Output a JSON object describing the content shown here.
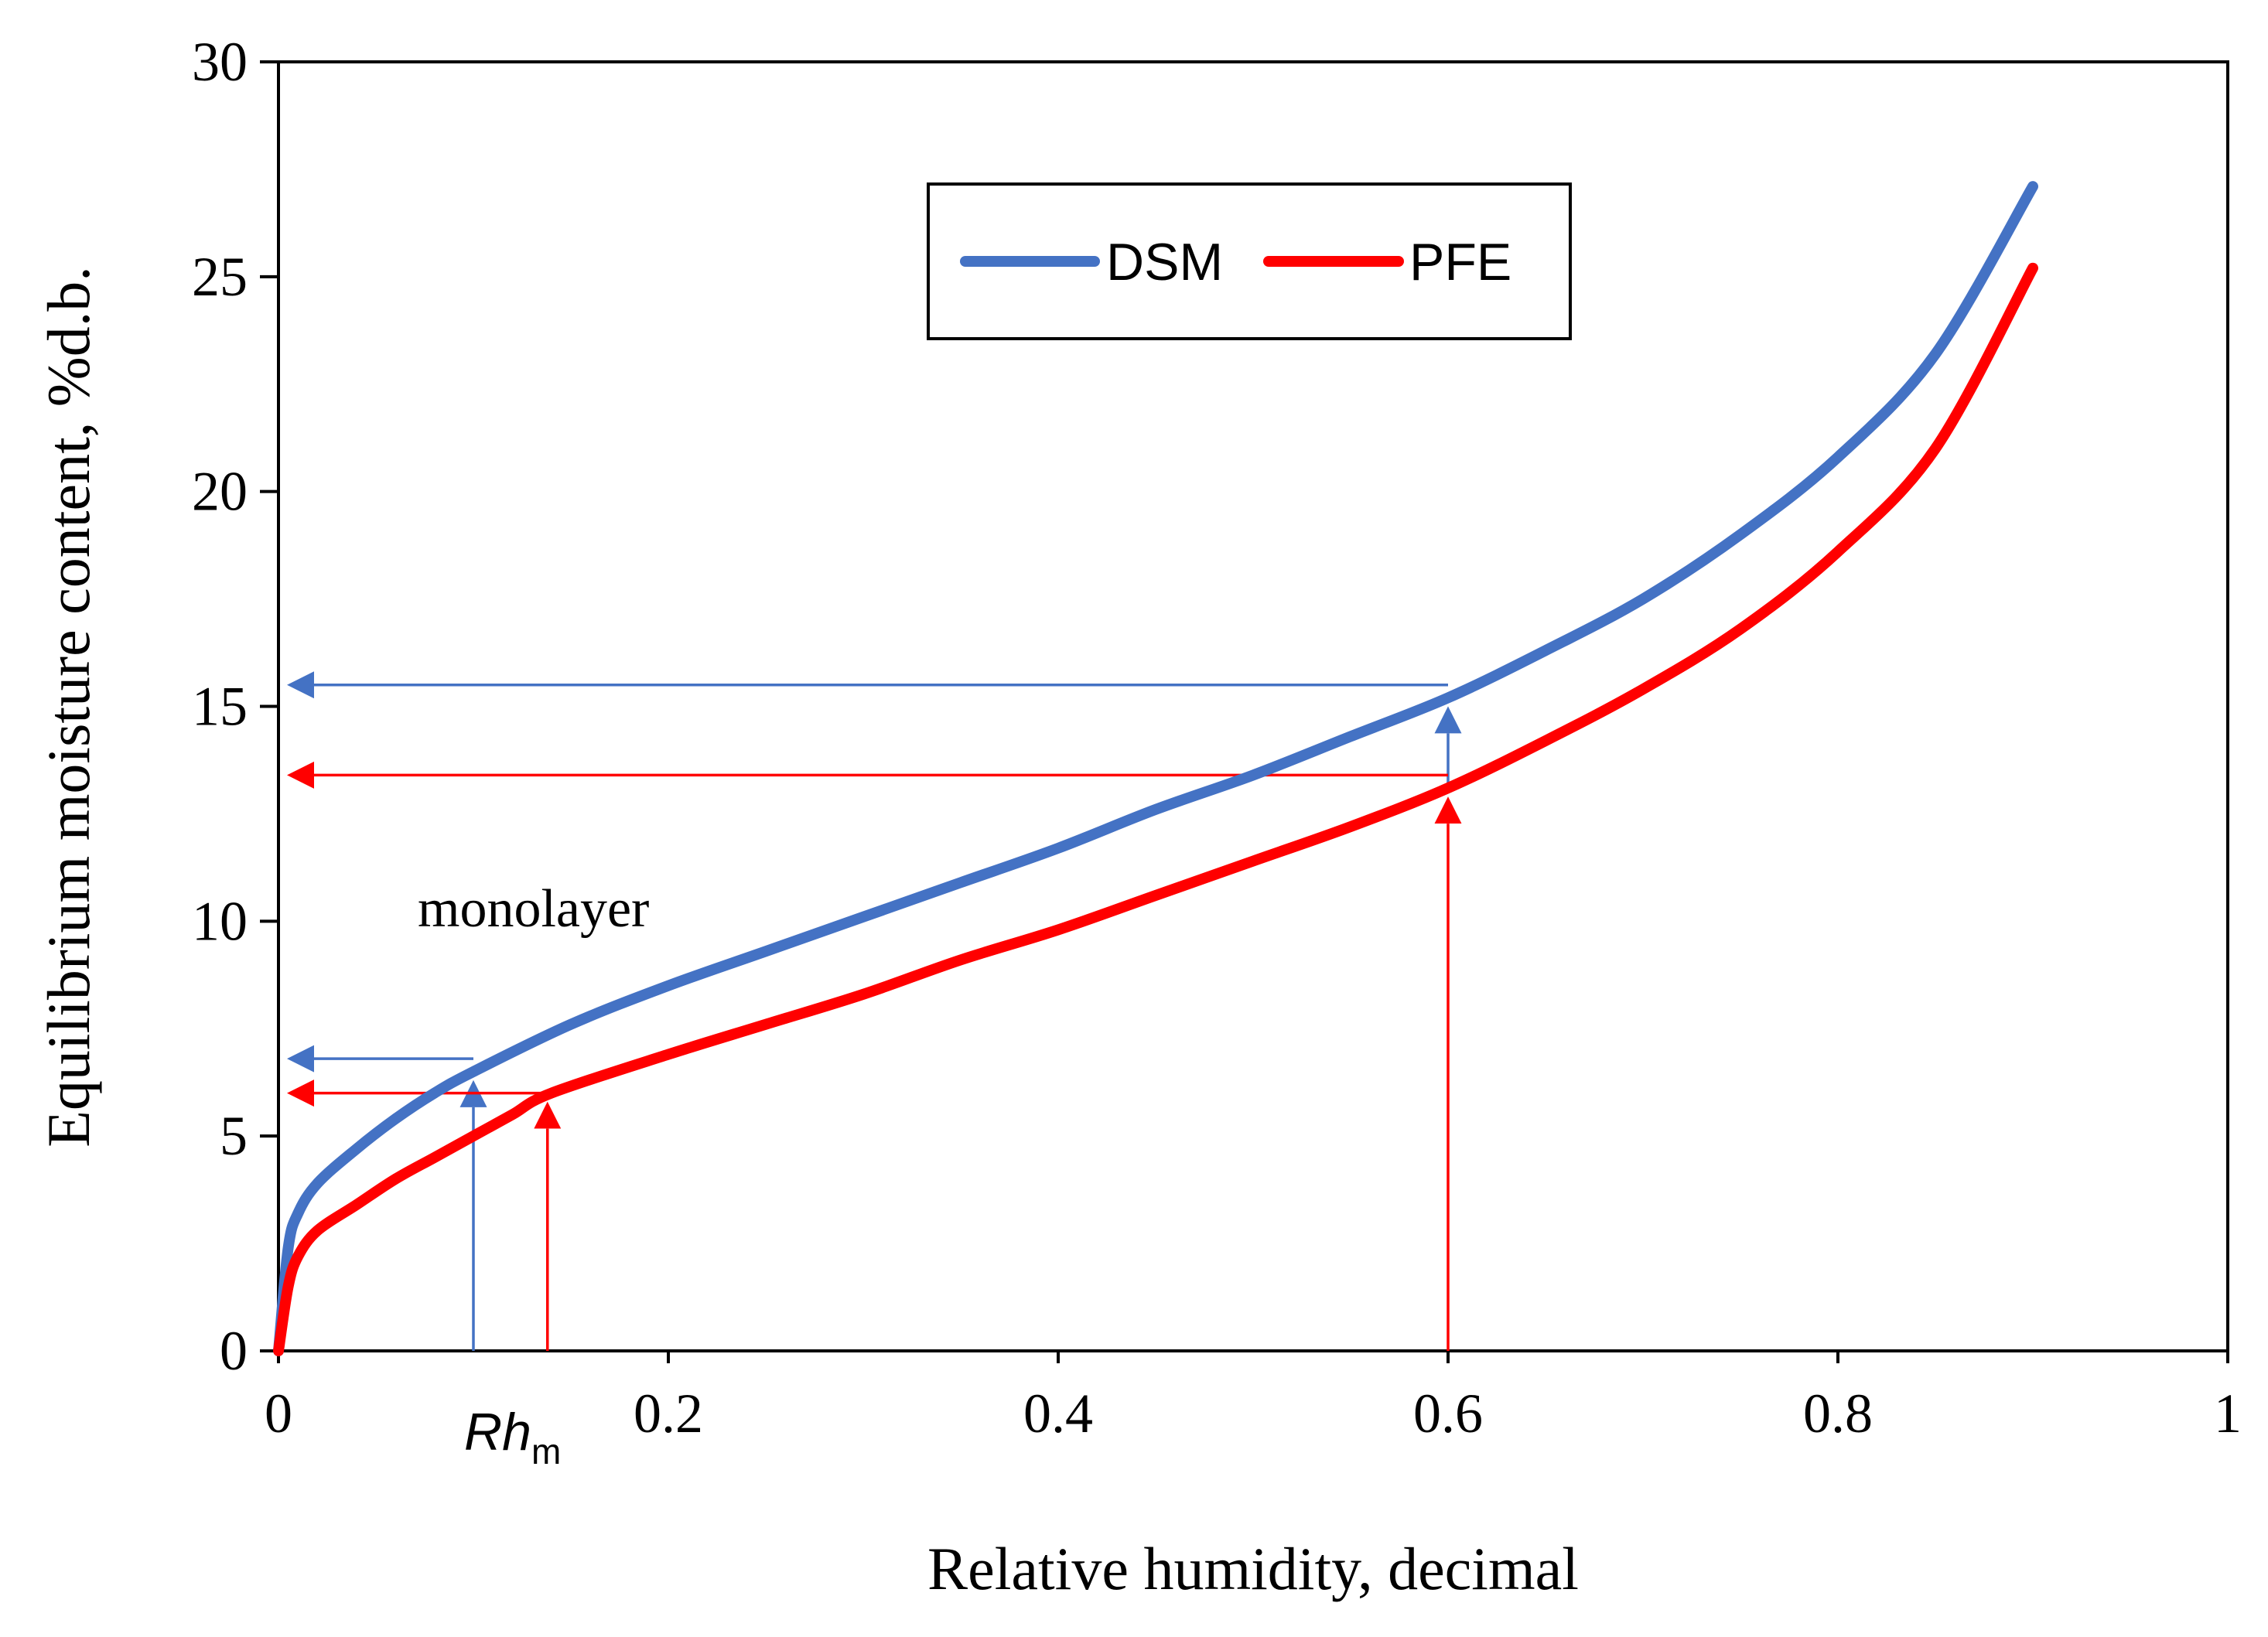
{
  "chart_data": {
    "type": "line",
    "title": "",
    "xlabel": "Relative humidity, decimal",
    "ylabel": "Equilibrium moisture content, %d.b.",
    "xlim": [
      0,
      1
    ],
    "ylim": [
      0,
      30
    ],
    "grid": false,
    "x_ticks": [
      {
        "value": 0,
        "label": "0"
      },
      {
        "value": 0.2,
        "label": "0.2"
      },
      {
        "value": 0.4,
        "label": "0.4"
      },
      {
        "value": 0.6,
        "label": "0.6"
      },
      {
        "value": 0.8,
        "label": "0.8"
      },
      {
        "value": 1,
        "label": "1"
      }
    ],
    "y_ticks": [
      {
        "value": 0,
        "label": "0"
      },
      {
        "value": 5,
        "label": "5"
      },
      {
        "value": 10,
        "label": "10"
      },
      {
        "value": 15,
        "label": "15"
      },
      {
        "value": 20,
        "label": "20"
      },
      {
        "value": 25,
        "label": "25"
      },
      {
        "value": 30,
        "label": "30"
      }
    ],
    "legend": {
      "position": "top-center",
      "boxed": true
    },
    "series": [
      {
        "name": "DSM",
        "color": "#4472C4",
        "x": [
          0,
          0.005,
          0.01,
          0.02,
          0.04,
          0.06,
          0.08,
          0.1,
          0.15,
          0.2,
          0.25,
          0.3,
          0.35,
          0.4,
          0.45,
          0.5,
          0.55,
          0.6,
          0.65,
          0.7,
          0.75,
          0.8,
          0.85,
          0.9
        ],
        "y": [
          0,
          2.4,
          3.2,
          3.9,
          4.7,
          5.4,
          6.0,
          6.5,
          7.6,
          8.5,
          9.3,
          10.1,
          10.9,
          11.7,
          12.6,
          13.4,
          14.3,
          15.2,
          16.3,
          17.5,
          19.0,
          20.8,
          23.2,
          27.1
        ]
      },
      {
        "name": "PFE",
        "color": "#FF0000",
        "x": [
          0,
          0.005,
          0.01,
          0.02,
          0.04,
          0.06,
          0.08,
          0.1,
          0.12,
          0.14,
          0.2,
          0.25,
          0.3,
          0.35,
          0.4,
          0.45,
          0.5,
          0.55,
          0.6,
          0.65,
          0.7,
          0.75,
          0.8,
          0.85,
          0.9
        ],
        "y": [
          0,
          1.5,
          2.2,
          2.8,
          3.4,
          4.0,
          4.5,
          5.0,
          5.5,
          6.0,
          6.9,
          7.6,
          8.3,
          9.1,
          9.8,
          10.6,
          11.4,
          12.2,
          13.1,
          14.2,
          15.4,
          16.8,
          18.6,
          21.0,
          25.2
        ]
      }
    ],
    "annotations": [
      {
        "kind": "text",
        "text": "monolayer",
        "x": 0.07,
        "y": 10.2
      },
      {
        "kind": "vertical_arrow",
        "color": "#4472C4",
        "x": 0.1,
        "y_from": 0,
        "y_to": 6.5
      },
      {
        "kind": "horizontal_arrow",
        "color": "#4472C4",
        "x_from": 0.1,
        "x_to": 0,
        "y": 6.8
      },
      {
        "kind": "vertical_arrow",
        "color": "#FF0000",
        "x": 0.138,
        "y_from": 0,
        "y_to": 6.0
      },
      {
        "kind": "horizontal_arrow",
        "color": "#FF0000",
        "x_from": 0.138,
        "x_to": 0,
        "y": 6.0
      },
      {
        "kind": "vertical_arrow",
        "color": "#4472C4",
        "x": 0.6,
        "y_from": 13.2,
        "y_to": 15.2
      },
      {
        "kind": "horizontal_arrow",
        "color": "#4472C4",
        "x_from": 0.6,
        "x_to": 0,
        "y": 15.5
      },
      {
        "kind": "vertical_arrow",
        "color": "#FF0000",
        "x": 0.6,
        "y_from": 0,
        "y_to": 13.1
      },
      {
        "kind": "horizontal_arrow",
        "color": "#FF0000",
        "x_from": 0.6,
        "x_to": 0,
        "y": 13.4
      }
    ],
    "rh_marker": {
      "base": "Rh",
      "subscript": "m",
      "x": 0.1
    }
  }
}
